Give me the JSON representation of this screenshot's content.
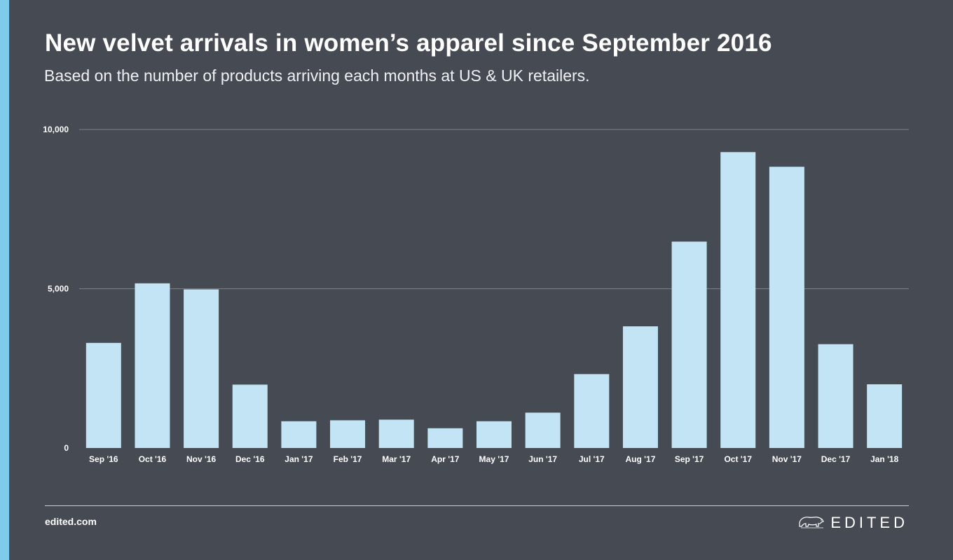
{
  "header": {
    "title": "New velvet arrivals in women’s apparel since September 2016",
    "subtitle": "Based on the number of products arriving each months at US & UK retailers."
  },
  "footer": {
    "url": "edited.com",
    "brand": "EDITED"
  },
  "icons": {
    "brand_logo": "polar-bear-icon"
  },
  "colors": {
    "background": "#464a52",
    "accent": "#7ecbea",
    "bar": "#c2e4f4",
    "gridline": "#7a7e86"
  },
  "chart_data": {
    "type": "bar",
    "categories": [
      "Sep '16",
      "Oct '16",
      "Nov '16",
      "Dec '16",
      "Jan '17",
      "Feb '17",
      "Mar '17",
      "Apr '17",
      "May '17",
      "Jun '17",
      "Jul '17",
      "Aug '17",
      "Sep '17",
      "Oct '17",
      "Nov '17",
      "Dec '17",
      "Jan '18"
    ],
    "values": [
      3300,
      5170,
      4980,
      1990,
      840,
      870,
      890,
      620,
      840,
      1110,
      2320,
      3820,
      6480,
      9290,
      8830,
      3260,
      2000
    ],
    "yticks": [
      "10,000",
      "5,000",
      "0"
    ],
    "ylim": [
      0,
      10000
    ],
    "grid": true,
    "title": "New velvet arrivals in women’s apparel since September 2016",
    "xlabel": "",
    "ylabel": ""
  }
}
